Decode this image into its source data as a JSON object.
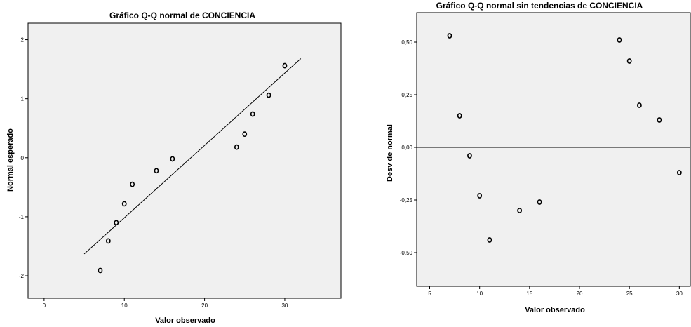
{
  "chart_data": [
    {
      "type": "scatter",
      "title": "Gráfico Q-Q normal de CONCIENCIA",
      "xlabel": "Valor observado",
      "ylabel": "Normal esperado",
      "xlim": [
        -2,
        37
      ],
      "ylim": [
        -2.38,
        2.28
      ],
      "xticks": [
        0,
        10,
        20,
        30
      ],
      "xtick_labels": [
        "0",
        "10",
        "20",
        "30"
      ],
      "yticks": [
        -2,
        -1,
        0,
        1,
        2
      ],
      "ytick_labels": [
        "-2",
        "-1",
        "0",
        "1",
        "2"
      ],
      "grid": false,
      "reference_line": {
        "x": [
          5,
          32
        ],
        "y": [
          -1.63,
          1.68
        ]
      },
      "points": [
        {
          "x": 7,
          "y": -1.91
        },
        {
          "x": 8,
          "y": -1.41
        },
        {
          "x": 9,
          "y": -1.1
        },
        {
          "x": 10,
          "y": -0.78
        },
        {
          "x": 11,
          "y": -0.45
        },
        {
          "x": 14,
          "y": -0.22
        },
        {
          "x": 16,
          "y": -0.02
        },
        {
          "x": 24,
          "y": 0.18
        },
        {
          "x": 25,
          "y": 0.4
        },
        {
          "x": 26,
          "y": 0.74
        },
        {
          "x": 28,
          "y": 1.06
        },
        {
          "x": 30,
          "y": 1.56
        }
      ]
    },
    {
      "type": "scatter",
      "title": "Gráfico Q-Q normal sin tendencias de CONCIENCIA",
      "xlabel": "Valor observado",
      "ylabel": "Desv de normal",
      "xlim": [
        3.7,
        31.1
      ],
      "ylim": [
        -0.66,
        0.64
      ],
      "xticks": [
        5,
        10,
        15,
        20,
        25,
        30
      ],
      "xtick_labels": [
        "5",
        "10",
        "15",
        "20",
        "25",
        "30"
      ],
      "yticks": [
        -0.5,
        -0.25,
        0,
        0.25,
        0.5
      ],
      "ytick_labels": [
        "-0,50",
        "-0,25",
        "0,00",
        "0,25",
        "0,50"
      ],
      "grid": false,
      "reference_line": {
        "y": 0
      },
      "points": [
        {
          "x": 7,
          "y": 0.53
        },
        {
          "x": 8,
          "y": 0.15
        },
        {
          "x": 9,
          "y": -0.04
        },
        {
          "x": 10,
          "y": -0.23
        },
        {
          "x": 11,
          "y": -0.44
        },
        {
          "x": 14,
          "y": -0.3
        },
        {
          "x": 16,
          "y": -0.26
        },
        {
          "x": 24,
          "y": 0.51
        },
        {
          "x": 25,
          "y": 0.41
        },
        {
          "x": 26,
          "y": 0.2
        },
        {
          "x": 28,
          "y": 0.13
        },
        {
          "x": 30,
          "y": -0.12
        }
      ]
    }
  ]
}
